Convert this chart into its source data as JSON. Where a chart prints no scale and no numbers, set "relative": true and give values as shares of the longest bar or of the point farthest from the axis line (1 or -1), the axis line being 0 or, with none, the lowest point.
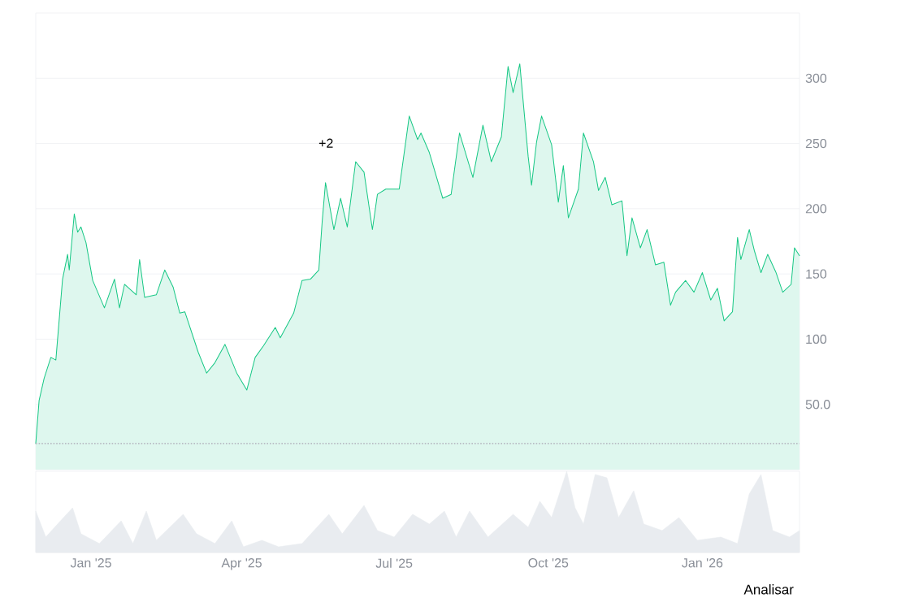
{
  "chart_data": [
    {
      "type": "area",
      "xlim": [
        "2024-11-29",
        "2026-02-28"
      ],
      "ylim": [
        0,
        350
      ],
      "yticks": [
        {
          "value": 50,
          "label": "50.0"
        },
        100,
        150,
        200,
        250,
        300
      ],
      "grid": "y",
      "tick_labels": "y",
      "x": [
        "2024-11-29",
        "2024-12-01",
        "2024-12-04",
        "2024-12-08",
        "2024-12-11",
        "2024-12-15",
        "2024-12-18",
        "2024-12-19",
        "2024-12-22",
        "2024-12-24",
        "2024-12-26",
        "2024-12-29",
        "2025-01-02",
        "2025-01-09",
        "2025-01-15",
        "2025-01-18",
        "2025-01-21",
        "2025-01-28",
        "2025-01-30",
        "2025-02-02",
        "2025-02-09",
        "2025-02-14",
        "2025-02-19",
        "2025-02-23",
        "2025-02-26",
        "2025-03-06",
        "2025-03-11",
        "2025-03-16",
        "2025-03-22",
        "2025-03-29",
        "2025-04-04",
        "2025-04-09",
        "2025-04-14",
        "2025-04-21",
        "2025-04-24",
        "2025-05-02",
        "2025-05-07",
        "2025-05-12",
        "2025-05-17",
        "2025-05-19",
        "2025-05-21",
        "2025-05-26",
        "2025-05-30",
        "2025-06-03",
        "2025-06-08",
        "2025-06-13",
        "2025-06-18",
        "2025-06-21",
        "2025-06-26",
        "2025-07-04",
        "2025-07-10",
        "2025-07-15",
        "2025-07-17",
        "2025-07-22",
        "2025-07-30",
        "2025-08-04",
        "2025-08-09",
        "2025-08-17",
        "2025-08-23",
        "2025-08-28",
        "2025-09-03",
        "2025-09-07",
        "2025-09-10",
        "2025-09-14",
        "2025-09-19",
        "2025-09-21",
        "2025-09-24",
        "2025-09-27",
        "2025-10-03",
        "2025-10-07",
        "2025-10-10",
        "2025-10-13",
        "2025-10-19",
        "2025-10-22",
        "2025-10-28",
        "2025-10-31",
        "2025-11-04",
        "2025-11-08",
        "2025-11-14",
        "2025-11-17",
        "2025-11-20",
        "2025-11-25",
        "2025-11-29",
        "2025-12-04",
        "2025-12-09",
        "2025-12-13",
        "2025-12-16",
        "2025-12-22",
        "2025-12-27",
        "2026-01-01",
        "2026-01-06",
        "2026-01-10",
        "2026-01-14",
        "2026-01-19",
        "2026-01-22",
        "2026-01-24",
        "2026-01-29",
        "2026-02-01",
        "2026-02-05",
        "2026-02-09",
        "2026-02-14",
        "2026-02-18",
        "2026-02-23",
        "2026-02-25",
        "2026-02-28"
      ],
      "series": [
        {
          "color": "#16c784",
          "values": [
            20,
            53,
            70,
            86,
            84,
            146,
            165,
            153,
            196,
            182,
            186,
            174,
            145,
            124,
            146,
            124,
            142,
            134,
            161,
            132,
            134,
            153,
            140,
            120,
            121,
            90,
            74,
            82,
            96,
            74,
            61,
            86,
            95,
            109,
            101,
            120,
            145,
            146,
            153,
            190,
            220,
            184,
            208,
            186,
            236,
            228,
            184,
            211,
            215,
            215,
            271,
            253,
            258,
            243,
            208,
            211,
            258,
            224,
            264,
            236,
            255,
            309,
            289,
            311,
            240,
            218,
            251,
            271,
            249,
            205,
            233,
            193,
            215,
            258,
            236,
            214,
            224,
            203,
            206,
            164,
            193,
            170,
            184,
            157,
            159,
            126,
            136,
            145,
            136,
            151,
            130,
            139,
            114,
            121,
            178,
            161,
            184,
            168,
            151,
            165,
            151,
            136,
            142,
            170,
            164
          ]
        }
      ],
      "ref_lines": [
        {
          "axis": "y",
          "value": 20,
          "color": "#b8bcc4",
          "line_style": "dotted"
        }
      ],
      "annotations": [
        "+2"
      ]
    },
    {
      "type": "area",
      "relative": true,
      "xlim": [
        "2024-11-29",
        "2026-02-28"
      ],
      "tick_labels": "x",
      "xticks": [
        {
          "value": "2025-01-01",
          "label": "Jan '25"
        },
        {
          "value": "2025-04-01",
          "label": "Apr '25"
        },
        {
          "value": "2025-07-01",
          "label": "Jul '25"
        },
        {
          "value": "2025-10-01",
          "label": "Oct '25"
        },
        {
          "value": "2026-01-01",
          "label": "Jan '26"
        }
      ],
      "x": [
        "2024-11-29",
        "2024-12-05",
        "2024-12-12",
        "2024-12-21",
        "2024-12-26",
        "2025-01-06",
        "2025-01-19",
        "2025-01-26",
        "2025-02-03",
        "2025-02-09",
        "2025-02-25",
        "2025-03-05",
        "2025-03-16",
        "2025-03-26",
        "2025-04-02",
        "2025-04-13",
        "2025-04-23",
        "2025-05-07",
        "2025-05-23",
        "2025-05-31",
        "2025-06-13",
        "2025-06-21",
        "2025-07-01",
        "2025-07-12",
        "2025-07-22",
        "2025-07-31",
        "2025-08-07",
        "2025-08-15",
        "2025-08-26",
        "2025-09-10",
        "2025-09-19",
        "2025-09-26",
        "2025-10-03",
        "2025-10-12",
        "2025-10-17",
        "2025-10-22",
        "2025-10-29",
        "2025-11-05",
        "2025-11-12",
        "2025-11-21",
        "2025-11-27",
        "2025-12-08",
        "2025-12-18",
        "2025-12-29",
        "2026-01-12",
        "2026-01-22",
        "2026-01-29",
        "2026-02-05",
        "2026-02-12",
        "2026-02-22",
        "2026-02-28"
      ],
      "series": [
        {
          "color": "#e9ecf0",
          "values": [
            0.51,
            0.19,
            0.35,
            0.55,
            0.23,
            0.11,
            0.39,
            0.11,
            0.51,
            0.15,
            0.47,
            0.23,
            0.11,
            0.39,
            0.07,
            0.15,
            0.07,
            0.11,
            0.47,
            0.23,
            0.58,
            0.27,
            0.19,
            0.47,
            0.35,
            0.51,
            0.19,
            0.51,
            0.19,
            0.47,
            0.31,
            0.63,
            0.43,
            1,
            0.55,
            0.35,
            0.96,
            0.92,
            0.43,
            0.76,
            0.35,
            0.27,
            0.43,
            0.15,
            0.19,
            0.11,
            0.72,
            0.96,
            0.27,
            0.19,
            0.27
          ]
        }
      ],
      "annotations": [
        "Analisar"
      ]
    }
  ]
}
